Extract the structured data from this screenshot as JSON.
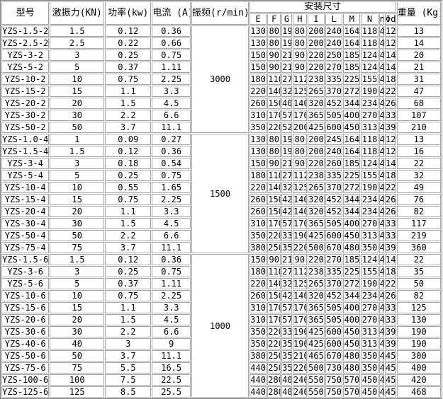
{
  "headers": {
    "model": "型号",
    "force": "激振力(KN)",
    "power": "功率(kw)",
    "current": "电流 (A)",
    "freq": "振频(r/min)",
    "install": "安装尺寸",
    "dims": [
      "E",
      "F",
      "G",
      "H",
      "I",
      "L",
      "M",
      "N",
      "n",
      "Φd"
    ],
    "weight": "重量 (Kg)"
  },
  "groups": [
    {
      "freq": "3000",
      "rows": [
        [
          "YZS-1.5-2",
          "1.5",
          "0.12",
          "0.36",
          "130",
          "80",
          "19",
          "80",
          "200",
          "240",
          "164",
          "118",
          "4",
          "12",
          "13"
        ],
        [
          "YZS-2.5-2",
          "2.5",
          "0.22",
          "0.66",
          "130",
          "80",
          "19",
          "80",
          "200",
          "240",
          "164",
          "118",
          "4",
          "12",
          "14"
        ],
        [
          "YZS-3-2",
          "3",
          "0.25",
          "0.75",
          "150",
          "90",
          "21",
          "90",
          "220",
          "250",
          "185",
          "124",
          "4",
          "14",
          "20"
        ],
        [
          "YZS-5-2",
          "5",
          "0.37",
          "1.11",
          "150",
          "90",
          "21",
          "90",
          "220",
          "270",
          "185",
          "124",
          "4",
          "14",
          "21"
        ],
        [
          "YZS-10-2",
          "10",
          "0.75",
          "2.25",
          "180",
          "110",
          "27",
          "112",
          "238",
          "335",
          "225",
          "155",
          "4",
          "18",
          "31"
        ],
        [
          "YZS-15-2",
          "15",
          "1.1",
          "3.3",
          "220",
          "140",
          "32",
          "125",
          "265",
          "370",
          "272",
          "190",
          "4",
          "22",
          "47"
        ],
        [
          "YZS-20-2",
          "20",
          "1.5",
          "4.5",
          "260",
          "150",
          "40",
          "140",
          "320",
          "452",
          "344",
          "234",
          "4",
          "26",
          "68"
        ],
        [
          "YZS-30-2",
          "30",
          "2.2",
          "6.6",
          "310",
          "170",
          "57",
          "170",
          "365",
          "505",
          "400",
          "270",
          "4",
          "33",
          "107"
        ],
        [
          "YZS-50-2",
          "50",
          "3.7",
          "11.1",
          "350",
          "220",
          "52",
          "200",
          "425",
          "600",
          "450",
          "313",
          "4",
          "39",
          "210"
        ]
      ]
    },
    {
      "freq": "1500",
      "rows": [
        [
          "YZS-1.0-4",
          "1",
          "0.09",
          "0.27",
          "130",
          "80",
          "19",
          "80",
          "200",
          "245",
          "164",
          "118",
          "4",
          "12",
          "13"
        ],
        [
          "YZS-1.5-4",
          "1.5",
          "0.12",
          "0.36",
          "130",
          "80",
          "19",
          "80",
          "200",
          "240",
          "164",
          "118",
          "4",
          "12",
          "16"
        ],
        [
          "YZS-3-4",
          "3",
          "0.18",
          "0.54",
          "150",
          "90",
          "21",
          "90",
          "220",
          "260",
          "185",
          "124",
          "4",
          "14",
          "22"
        ],
        [
          "YZS-5-4",
          "5",
          "0.25",
          "0.75",
          "180",
          "110",
          "27",
          "112",
          "238",
          "335",
          "225",
          "155",
          "4",
          "18",
          "32"
        ],
        [
          "YZS-10-4",
          "10",
          "0.55",
          "1.65",
          "220",
          "140",
          "32",
          "125",
          "265",
          "370",
          "272",
          "190",
          "4",
          "22",
          "49"
        ],
        [
          "YZS-15-4",
          "15",
          "0.75",
          "2.25",
          "260",
          "150",
          "42",
          "140",
          "320",
          "452",
          "344",
          "234",
          "4",
          "26",
          "76"
        ],
        [
          "YZS-20-4",
          "20",
          "1.1",
          "3.3",
          "260",
          "150",
          "42",
          "140",
          "320",
          "452",
          "344",
          "234",
          "4",
          "26",
          "82"
        ],
        [
          "YZS-30-4",
          "30",
          "1.5",
          "4.5",
          "310",
          "170",
          "57",
          "170",
          "365",
          "505",
          "400",
          "270",
          "4",
          "33",
          "117"
        ],
        [
          "YZS-50-4",
          "50",
          "2.2",
          "6.6",
          "350",
          "220",
          "33",
          "190",
          "425",
          "600",
          "450",
          "313",
          "4",
          "33",
          "219"
        ],
        [
          "YZS-75-4",
          "75",
          "3.7",
          "11.1",
          "380",
          "250",
          "35",
          "220",
          "500",
          "670",
          "480",
          "350",
          "4",
          "39",
          "360"
        ]
      ]
    },
    {
      "freq": "1000",
      "rows": [
        [
          "YZS-1.5-6",
          "1.5",
          "0.12",
          "0.36",
          "150",
          "90",
          "21",
          "90",
          "220",
          "270",
          "185",
          "124",
          "4",
          "14",
          "22"
        ],
        [
          "YZS-3-6",
          "3",
          "0.25",
          "0.75",
          "180",
          "110",
          "27",
          "112",
          "238",
          "335",
          "225",
          "155",
          "4",
          "18",
          "35"
        ],
        [
          "YZS-5-6",
          "5",
          "0.37",
          "1.11",
          "220",
          "140",
          "32",
          "125",
          "265",
          "370",
          "272",
          "190",
          "4",
          "22",
          "50"
        ],
        [
          "YZS-10-6",
          "10",
          "0.75",
          "2.25",
          "260",
          "150",
          "42",
          "140",
          "320",
          "452",
          "344",
          "234",
          "4",
          "26",
          "82"
        ],
        [
          "YZS-15-6",
          "15",
          "1.1",
          "3.3",
          "310",
          "170",
          "57",
          "170",
          "365",
          "505",
          "400",
          "270",
          "4",
          "33",
          "125"
        ],
        [
          "YZS-20-6",
          "20",
          "1.5",
          "4.5",
          "310",
          "170",
          "57",
          "170",
          "365",
          "505",
          "400",
          "270",
          "4",
          "33",
          "130"
        ],
        [
          "YZS-30-6",
          "30",
          "2.2",
          "6.6",
          "350",
          "220",
          "33",
          "190",
          "425",
          "600",
          "450",
          "313",
          "4",
          "39",
          "190"
        ],
        [
          "YZS-40-6",
          "40",
          "3",
          "9",
          "350",
          "220",
          "35",
          "190",
          "425",
          "600",
          "450",
          "313",
          "4",
          "39",
          "190"
        ],
        [
          "YZS-50-6",
          "50",
          "3.7",
          "11.1",
          "380",
          "250",
          "35",
          "210",
          "465",
          "670",
          "480",
          "350",
          "4",
          "45",
          "300"
        ],
        [
          "YZS-75-6",
          "75",
          "5.5",
          "16.5",
          "440",
          "250",
          "35",
          "220",
          "500",
          "730",
          "480",
          "350",
          "4",
          "45",
          "400"
        ],
        [
          "YZS-100-6",
          "100",
          "7.5",
          "22.5",
          "440",
          "280",
          "40",
          "240",
          "550",
          "750",
          "570",
          "450",
          "4",
          "45",
          "420"
        ],
        [
          "YZS-125-6",
          "125",
          "8.5",
          "25.5",
          "440",
          "280",
          "40",
          "240",
          "550",
          "750",
          "570",
          "450",
          "4",
          "45",
          "468"
        ]
      ]
    }
  ]
}
